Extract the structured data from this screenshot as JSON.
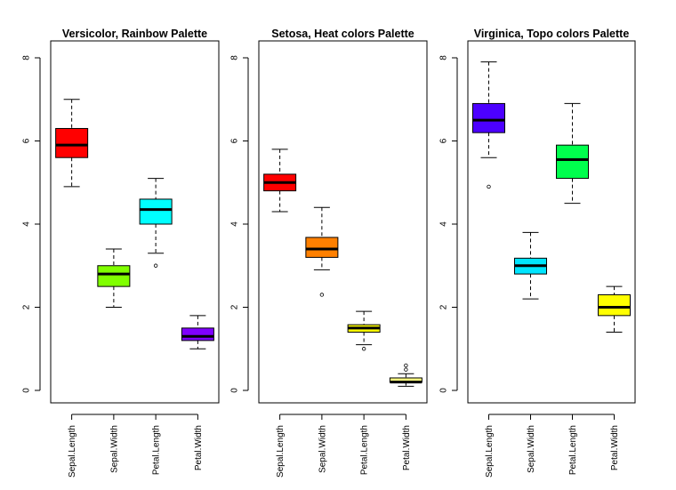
{
  "chart_data": [
    {
      "type": "boxplot",
      "title": "Versicolor, Rainbow Palette",
      "categories": [
        "Sepal.Length",
        "Sepal.Width",
        "Petal.Length",
        "Petal.Width"
      ],
      "colors": [
        "#FF0000",
        "#80FF00",
        "#00FFFF",
        "#8000FF"
      ],
      "ylim": [
        0,
        8
      ],
      "yticks": [
        0,
        2,
        4,
        6,
        8
      ],
      "boxes": [
        {
          "min": 4.9,
          "q1": 5.6,
          "median": 5.9,
          "q3": 6.3,
          "max": 7.0,
          "outliers": []
        },
        {
          "min": 2.0,
          "q1": 2.5,
          "median": 2.8,
          "q3": 3.0,
          "max": 3.4,
          "outliers": []
        },
        {
          "min": 3.3,
          "q1": 4.0,
          "median": 4.35,
          "q3": 4.6,
          "max": 5.1,
          "outliers": [
            3.0
          ]
        },
        {
          "min": 1.0,
          "q1": 1.2,
          "median": 1.3,
          "q3": 1.5,
          "max": 1.8,
          "outliers": []
        }
      ]
    },
    {
      "type": "boxplot",
      "title": "Setosa, Heat colors Palette",
      "categories": [
        "Sepal.Length",
        "Sepal.Width",
        "Petal.Length",
        "Petal.Width"
      ],
      "colors": [
        "#FF0000",
        "#FF8000",
        "#FFFF00",
        "#FFFF80"
      ],
      "ylim": [
        0,
        8
      ],
      "yticks": [
        0,
        2,
        4,
        6,
        8
      ],
      "boxes": [
        {
          "min": 4.3,
          "q1": 4.8,
          "median": 5.0,
          "q3": 5.2,
          "max": 5.8,
          "outliers": []
        },
        {
          "min": 2.9,
          "q1": 3.2,
          "median": 3.4,
          "q3": 3.68,
          "max": 4.4,
          "outliers": [
            2.3
          ]
        },
        {
          "min": 1.1,
          "q1": 1.4,
          "median": 1.5,
          "q3": 1.58,
          "max": 1.9,
          "outliers": [
            1.0
          ]
        },
        {
          "min": 0.1,
          "q1": 0.2,
          "median": 0.2,
          "q3": 0.3,
          "max": 0.4,
          "outliers": [
            0.5,
            0.6
          ]
        }
      ]
    },
    {
      "type": "boxplot",
      "title": "Virginica, Topo colors Palette",
      "categories": [
        "Sepal.Length",
        "Sepal.Width",
        "Petal.Length",
        "Petal.Width"
      ],
      "colors": [
        "#4C00FF",
        "#00E5FF",
        "#00FF4D",
        "#FFFF00"
      ],
      "ylim": [
        0,
        8
      ],
      "yticks": [
        0,
        2,
        4,
        6,
        8
      ],
      "boxes": [
        {
          "min": 5.6,
          "q1": 6.2,
          "median": 6.5,
          "q3": 6.9,
          "max": 7.9,
          "outliers": [
            4.9
          ]
        },
        {
          "min": 2.2,
          "q1": 2.8,
          "median": 3.0,
          "q3": 3.18,
          "max": 3.8,
          "outliers": []
        },
        {
          "min": 4.5,
          "q1": 5.1,
          "median": 5.55,
          "q3": 5.9,
          "max": 6.9,
          "outliers": []
        },
        {
          "min": 1.4,
          "q1": 1.8,
          "median": 2.0,
          "q3": 2.3,
          "max": 2.5,
          "outliers": []
        }
      ]
    }
  ]
}
